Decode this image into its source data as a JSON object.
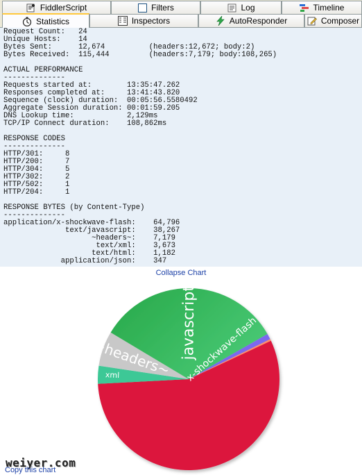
{
  "tabs": {
    "row1": [
      {
        "label": "FiddlerScript",
        "icon": "script-icon"
      },
      {
        "label": "Filters",
        "icon": "checkbox-icon"
      },
      {
        "label": "Log",
        "icon": "log-icon"
      },
      {
        "label": "Timeline",
        "icon": "timeline-icon"
      }
    ],
    "row2": [
      {
        "label": "Statistics",
        "icon": "stopwatch-icon"
      },
      {
        "label": "Inspectors",
        "icon": "inspect-icon"
      },
      {
        "label": "AutoResponder",
        "icon": "lightning-icon"
      },
      {
        "label": "Composer",
        "icon": "compose-icon"
      }
    ]
  },
  "stats_text": "Request Count:   24\nUnique Hosts:    14\nBytes Sent:      12,674          (headers:12,672; body:2)\nBytes Received:  115,444         (headers:7,179; body:108,265)\n\nACTUAL PERFORMANCE\n--------------\nRequests started at:        13:35:47.262\nResponses completed at:     13:41:43.820\nSequence (clock) duration:  00:05:56.5580492\nAggregate Session duration: 00:01:59.205\nDNS Lookup time:            2,129ms\nTCP/IP Connect duration:    108,862ms\n\nRESPONSE CODES\n--------------\nHTTP/301:     8\nHTTP/200:     7\nHTTP/304:     5\nHTTP/302:     2\nHTTP/502:     1\nHTTP/204:     1\n\nRESPONSE BYTES (by Content-Type)\n--------------\napplication/x-shockwave-flash:    64,796\n              text/javascript:    38,267\n                    ~headers~:    7,179\n                     text/xml:    3,673\n                    text/html:    1,182\n             application/json:    347",
  "collapse_label": "Collapse Chart",
  "copy_label": "Copy this chart",
  "watermark": "weiyer.com",
  "chart_data": {
    "type": "pie",
    "title": "",
    "series": [
      {
        "name": "x-shockwave-flash",
        "values": [
          64796
        ],
        "color": "#dc143c",
        "label": "x-shockwave-flash"
      },
      {
        "name": "xml",
        "values": [
          3673
        ],
        "color": "#3cc896",
        "label": "xml"
      },
      {
        "name": "~headers~",
        "values": [
          7179
        ],
        "color": "#c8c8c8",
        "label": "~headers~"
      },
      {
        "name": "javascript",
        "values": [
          38267
        ],
        "color": "#32b45a",
        "label": "javascript"
      },
      {
        "name": "html",
        "values": [
          1182
        ],
        "color": "#7b68ee",
        "label": ""
      },
      {
        "name": "json",
        "values": [
          347
        ],
        "color": "#ff8c69",
        "label": ""
      }
    ]
  }
}
